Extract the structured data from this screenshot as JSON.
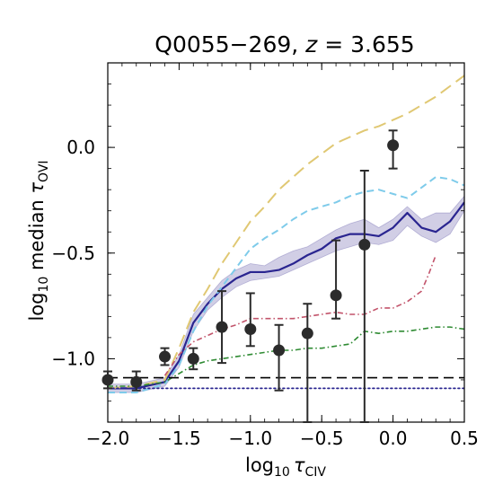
{
  "chart_data": {
    "type": "line",
    "title": "Q0055−269, z = 3.655",
    "title_parts": {
      "prefix": "Q0055−269, ",
      "z": "z",
      "suffix": " = 3.655"
    },
    "xlabel": {
      "base": "log",
      "sub": "10",
      "tau": "τ",
      "tau_sub": "CIV"
    },
    "ylabel": {
      "base": "log",
      "sub": "10",
      "middle": " median ",
      "tau": "τ",
      "tau_sub": "OVI"
    },
    "xlim": [
      -2.0,
      0.5
    ],
    "ylim": [
      -1.3,
      0.4
    ],
    "xticks": [
      {
        "value": -2.0,
        "label": "−2.0"
      },
      {
        "value": -1.5,
        "label": "−1.5"
      },
      {
        "value": -1.0,
        "label": "−1.0"
      },
      {
        "value": -0.5,
        "label": "−0.5"
      },
      {
        "value": 0.0,
        "label": "0.0"
      },
      {
        "value": 0.5,
        "label": "0.5"
      }
    ],
    "yticks": [
      {
        "value": -1.0,
        "label": "−1.0"
      },
      {
        "value": -0.5,
        "label": "−0.5"
      },
      {
        "value": 0.0,
        "label": "0.0"
      }
    ],
    "grid": false,
    "series": [
      {
        "style": "band",
        "color": "#5a4fa3",
        "opacity": 0.28,
        "x": [
          -2.0,
          -1.8,
          -1.6,
          -1.5,
          -1.4,
          -1.3,
          -1.2,
          -1.1,
          -1.0,
          -0.9,
          -0.8,
          -0.7,
          -0.6,
          -0.5,
          -0.4,
          -0.3,
          -0.2,
          -0.1,
          0.0,
          0.1,
          0.2,
          0.3,
          0.4,
          0.5
        ],
        "upper": [
          -1.12,
          -1.12,
          -1.09,
          -0.98,
          -0.79,
          -0.71,
          -0.63,
          -0.58,
          -0.55,
          -0.56,
          -0.52,
          -0.49,
          -0.47,
          -0.43,
          -0.39,
          -0.36,
          -0.34,
          -0.38,
          -0.34,
          -0.28,
          -0.34,
          -0.31,
          -0.31,
          -0.23
        ],
        "lower": [
          -1.16,
          -1.16,
          -1.13,
          -1.04,
          -0.87,
          -0.77,
          -0.71,
          -0.66,
          -0.63,
          -0.62,
          -0.61,
          -0.58,
          -0.55,
          -0.52,
          -0.49,
          -0.47,
          -0.45,
          -0.46,
          -0.44,
          -0.37,
          -0.42,
          -0.45,
          -0.41,
          -0.3
        ]
      },
      {
        "style": "solid",
        "color": "#2a2590",
        "width": 2.2,
        "x": [
          -2.0,
          -1.8,
          -1.6,
          -1.5,
          -1.4,
          -1.3,
          -1.2,
          -1.1,
          -1.0,
          -0.9,
          -0.8,
          -0.7,
          -0.6,
          -0.5,
          -0.4,
          -0.3,
          -0.2,
          -0.1,
          0.0,
          0.1,
          0.2,
          0.3,
          0.4,
          0.5
        ],
        "y": [
          -1.14,
          -1.14,
          -1.11,
          -1.01,
          -0.83,
          -0.74,
          -0.67,
          -0.62,
          -0.59,
          -0.59,
          -0.58,
          -0.55,
          -0.51,
          -0.48,
          -0.43,
          -0.41,
          -0.41,
          -0.42,
          -0.38,
          -0.31,
          -0.38,
          -0.4,
          -0.35,
          -0.26
        ]
      },
      {
        "style": "longdash",
        "color": "#e0c873",
        "width": 2,
        "x": [
          -2.0,
          -1.8,
          -1.6,
          -1.5,
          -1.4,
          -1.3,
          -1.2,
          -1.1,
          -1.0,
          -0.9,
          -0.8,
          -0.7,
          -0.6,
          -0.5,
          -0.4,
          -0.3,
          -0.2,
          -0.1,
          0.0,
          0.1,
          0.2,
          0.3,
          0.4,
          0.5
        ],
        "y": [
          -1.14,
          -1.13,
          -1.1,
          -0.95,
          -0.78,
          -0.67,
          -0.55,
          -0.45,
          -0.35,
          -0.28,
          -0.2,
          -0.14,
          -0.08,
          -0.03,
          0.02,
          0.05,
          0.08,
          0.1,
          0.13,
          0.16,
          0.2,
          0.24,
          0.29,
          0.34
        ]
      },
      {
        "style": "dashed",
        "color": "#7ecbea",
        "width": 2,
        "x": [
          -2.0,
          -1.8,
          -1.6,
          -1.5,
          -1.4,
          -1.3,
          -1.2,
          -1.1,
          -1.0,
          -0.9,
          -0.8,
          -0.7,
          -0.6,
          -0.5,
          -0.4,
          -0.3,
          -0.2,
          -0.1,
          0.0,
          0.1,
          0.2,
          0.3,
          0.4,
          0.5
        ],
        "y": [
          -1.16,
          -1.16,
          -1.12,
          -1.03,
          -0.87,
          -0.75,
          -0.66,
          -0.57,
          -0.48,
          -0.43,
          -0.39,
          -0.34,
          -0.3,
          -0.28,
          -0.26,
          -0.23,
          -0.21,
          -0.2,
          -0.22,
          -0.24,
          -0.19,
          -0.14,
          -0.15,
          -0.18
        ]
      },
      {
        "style": "dashdot",
        "color": "#c2546b",
        "width": 1.6,
        "x": [
          -1.6,
          -1.5,
          -1.4,
          -1.3,
          -1.2,
          -1.1,
          -1.0,
          -0.9,
          -0.8,
          -0.7,
          -0.6,
          -0.5,
          -0.4,
          -0.3,
          -0.2,
          -0.1,
          0.0,
          0.1,
          0.2,
          0.25,
          0.3
        ],
        "y": [
          -1.08,
          -0.98,
          -0.92,
          -0.89,
          -0.86,
          -0.84,
          -0.81,
          -0.81,
          -0.81,
          -0.81,
          -0.8,
          -0.79,
          -0.78,
          -0.79,
          -0.79,
          -0.76,
          -0.76,
          -0.73,
          -0.68,
          -0.6,
          -0.51
        ]
      },
      {
        "style": "dashdot",
        "color": "#2f8b33",
        "width": 1.6,
        "x": [
          -2.0,
          -1.8,
          -1.6,
          -1.5,
          -1.4,
          -1.3,
          -1.2,
          -1.1,
          -1.0,
          -0.9,
          -0.8,
          -0.7,
          -0.6,
          -0.5,
          -0.4,
          -0.3,
          -0.2,
          -0.1,
          0.0,
          0.1,
          0.2,
          0.3,
          0.4,
          0.5
        ],
        "y": [
          -1.13,
          -1.13,
          -1.11,
          -1.07,
          -1.03,
          -1.01,
          -1.0,
          -0.99,
          -0.98,
          -0.97,
          -0.96,
          -0.96,
          -0.95,
          -0.95,
          -0.94,
          -0.93,
          -0.87,
          -0.88,
          -0.87,
          -0.87,
          -0.86,
          -0.85,
          -0.85,
          -0.86
        ]
      },
      {
        "style": "hline-dashed",
        "color": "#000000",
        "width": 1.6,
        "y": -1.09
      },
      {
        "style": "hline-dotted",
        "color": "#2a2590",
        "width": 1.8,
        "y": -1.14
      }
    ],
    "points": {
      "color": "#2b2b2b",
      "x": [
        -2.0,
        -1.8,
        -1.6,
        -1.4,
        -1.2,
        -1.0,
        -0.8,
        -0.6,
        -0.4,
        -0.2,
        0.0
      ],
      "y": [
        -1.1,
        -1.11,
        -0.99,
        -1.0,
        -0.85,
        -0.86,
        -0.96,
        -0.88,
        -0.7,
        -0.46,
        0.01
      ],
      "yerr_low": [
        0.04,
        0.04,
        0.04,
        0.05,
        0.17,
        0.08,
        0.19,
        0.42,
        0.11,
        0.84,
        0.11
      ],
      "yerr_high": [
        0.04,
        0.05,
        0.04,
        0.05,
        0.17,
        0.17,
        0.12,
        0.14,
        0.26,
        0.35,
        0.07
      ]
    }
  }
}
